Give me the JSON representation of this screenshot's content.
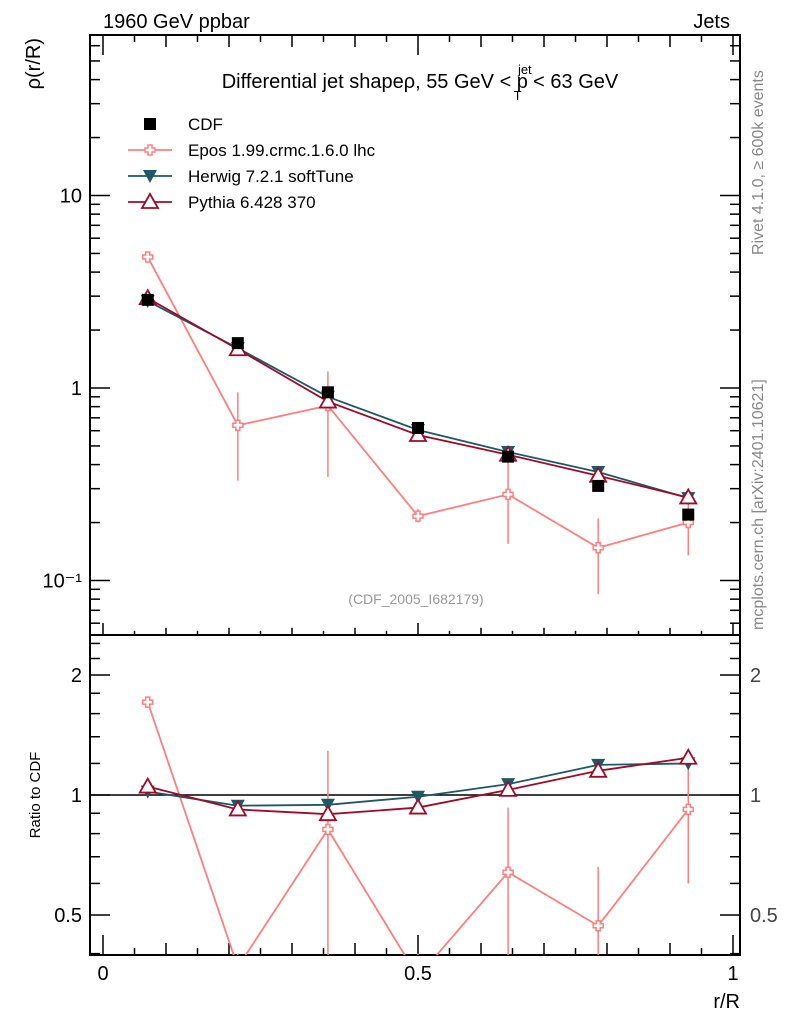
{
  "header": {
    "left": "1960 GeV ppbar",
    "right": "Jets"
  },
  "side_labels": {
    "rivet": "Rivet 4.1.0, ≥ 600k events",
    "mcplots": "mcplots.cern.ch [arXiv:2401.10621]"
  },
  "chart_data": {
    "type": "line",
    "title_parts": {
      "main": "Differential jet shapeρ, 55 GeV < p",
      "sup": "jet",
      "sub": "T",
      "tail": " < 63 GeV"
    },
    "analysis_id": "(CDF_2005_I682179)",
    "xlabel": "r/R",
    "ylabel": "ρ(r/R)",
    "ratio_ylabel": "Ratio to CDF",
    "xlim": [
      -0.02,
      1.01
    ],
    "ylim": [
      0.052,
      68
    ],
    "ratio_ylim": [
      0.4,
      2.52
    ],
    "yscale": "log",
    "x_tick_labels": [
      "0",
      "0.5",
      "1"
    ],
    "x_ticks": [
      0,
      0.5,
      1
    ],
    "y_tick_labels": [
      "10⁻¹",
      "1",
      "10"
    ],
    "y_ticks": [
      0.1,
      1,
      10
    ],
    "ratio_tick_labels": [
      "0.5",
      "1",
      "2"
    ],
    "ratio_ticks": [
      0.5,
      1,
      2
    ],
    "legend_position": "top-left",
    "x": [
      0.071,
      0.214,
      0.357,
      0.5,
      0.643,
      0.786,
      0.929
    ],
    "series": [
      {
        "name": "CDF",
        "color": "#000000",
        "marker": "square",
        "values": [
          2.87,
          1.71,
          0.95,
          0.62,
          0.44,
          0.31,
          0.22
        ]
      },
      {
        "name": "Epos 1.99.crmc.1.6.0 lhc",
        "color": "#ff7f7f",
        "marker": "cross-open",
        "values": [
          4.79,
          0.64,
          0.81,
          0.216,
          0.28,
          0.148,
          0.2
        ],
        "err_low": [
          4.6,
          0.33,
          0.345,
          0.2,
          0.155,
          0.085,
          0.135
        ],
        "err_high": [
          4.95,
          0.95,
          1.22,
          0.235,
          0.44,
          0.21,
          0.26
        ],
        "ratio": [
          1.71,
          0.37,
          0.82,
          0.35,
          0.64,
          0.47,
          0.92
        ],
        "ratio_err_low": [
          1.66,
          0.3,
          0.3,
          0.3,
          0.3,
          0.3,
          0.6
        ],
        "ratio_err_high": [
          1.76,
          0.4,
          1.29,
          0.4,
          0.93,
          0.66,
          1.22
        ]
      },
      {
        "name": "Herwig 7.2.1 softTune",
        "color": "#1e5a66",
        "marker": "triangle-down",
        "values": [
          2.83,
          1.61,
          0.9,
          0.605,
          0.465,
          0.366,
          0.268
        ],
        "ratio": [
          1.02,
          0.94,
          0.945,
          0.99,
          1.065,
          1.19,
          1.2
        ]
      },
      {
        "name": "Pythia 6.428 370",
        "color": "#a00a28",
        "marker": "triangle-up-open",
        "values": [
          2.93,
          1.59,
          0.85,
          0.57,
          0.45,
          0.35,
          0.27
        ],
        "ratio": [
          1.05,
          0.92,
          0.895,
          0.93,
          1.03,
          1.15,
          1.24
        ]
      }
    ]
  }
}
